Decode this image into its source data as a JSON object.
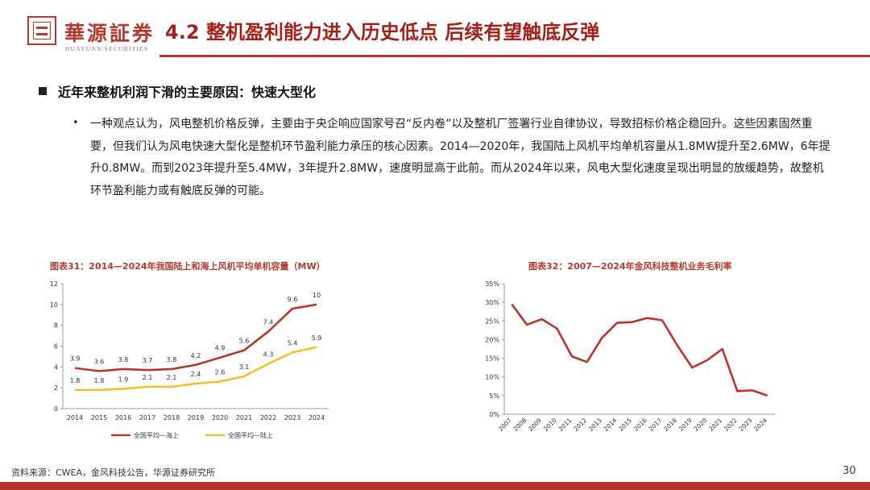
{
  "brand": {
    "name_cn": "華源証券",
    "name_en": "HUAYUAN SECURITIES"
  },
  "slide": {
    "title": "4.2 整机盈利能力进入历史低点 后续有望触底反弹",
    "heading": "近年来整机利润下滑的主要原因：快速大型化",
    "bullet_dot": "•",
    "paragraph": "一种观点认为，风电整机价格反弹，主要由于央企响应国家号召“反内卷”以及整机厂签署行业自律协议，导致招标价格企稳回升。这些因素固然重要，但我们认为风电快速大型化是整机环节盈利能力承压的核心因素。2014—2020年，我国陆上风机平均单机容量从1.8MW提升至2.6MW，6年提升0.8MW。而到2023年提升至5.4MW，3年提升2.8MW，速度明显高于此前。而从2024年以来，风电大型化速度呈现出明显的放缓趋势，故整机环节盈利能力或有触底反弹的可能。"
  },
  "footer": {
    "source": "资料来源：CWEA，金风科技公告，华源证券研究所",
    "page": "30"
  },
  "colors": {
    "brand_red": "#b23a2e",
    "offshore_line": "#b5382c",
    "onshore_line": "#f2c02e",
    "margin_line": "#c0302a"
  },
  "chart_data": [
    {
      "type": "line",
      "title": "图表31：2014—2024年我国陆上和海上风机平均单机容量（MW）",
      "categories": [
        "2014",
        "2015",
        "2016",
        "2017",
        "2018",
        "2019",
        "2020",
        "2021",
        "2022",
        "2023",
        "2024"
      ],
      "series": [
        {
          "name": "全国平均—海上",
          "values": [
            3.9,
            3.6,
            3.8,
            3.7,
            3.8,
            4.2,
            4.9,
            5.6,
            7.4,
            9.6,
            10
          ],
          "labels": [
            "3.9",
            "3.6",
            "3.8",
            "3.7",
            "3.8",
            "4.2",
            "4.9",
            "5.6",
            "7.4",
            "9.6",
            "10"
          ]
        },
        {
          "name": "全国平均—陆上",
          "values": [
            1.8,
            1.8,
            1.9,
            2.1,
            2.1,
            2.4,
            2.6,
            3.1,
            4.3,
            5.4,
            5.9
          ],
          "labels": [
            "1.8",
            "1.8",
            "1.9",
            "2.1",
            "2.1",
            "2.4",
            "2.6",
            "3.1",
            "4.3",
            "5.4",
            "5.9"
          ]
        }
      ],
      "yticks": [
        "0",
        "2",
        "4",
        "6",
        "8",
        "10",
        "12"
      ],
      "ylim": [
        0,
        12
      ],
      "legend": "bottom"
    },
    {
      "type": "line",
      "title": "图表32：2007—2024年金风科技整机业务毛利率",
      "categories": [
        "2007",
        "2008",
        "2009",
        "2010",
        "2011",
        "2012",
        "2013",
        "2014",
        "2015",
        "2016",
        "2017",
        "2018",
        "2019",
        "2020",
        "2021",
        "2022",
        "2023",
        "2024"
      ],
      "series": [
        {
          "name": "整机业务毛利率",
          "values": [
            29.5,
            24,
            25.5,
            23,
            15.5,
            14,
            20.5,
            24.5,
            24.7,
            25.8,
            25.2,
            18.5,
            12.5,
            14.5,
            17.5,
            6.2,
            6.4,
            5
          ]
        }
      ],
      "yticks": [
        "0%",
        "5%",
        "10%",
        "15%",
        "20%",
        "25%",
        "30%",
        "35%"
      ],
      "ylim": [
        0,
        35
      ]
    }
  ]
}
